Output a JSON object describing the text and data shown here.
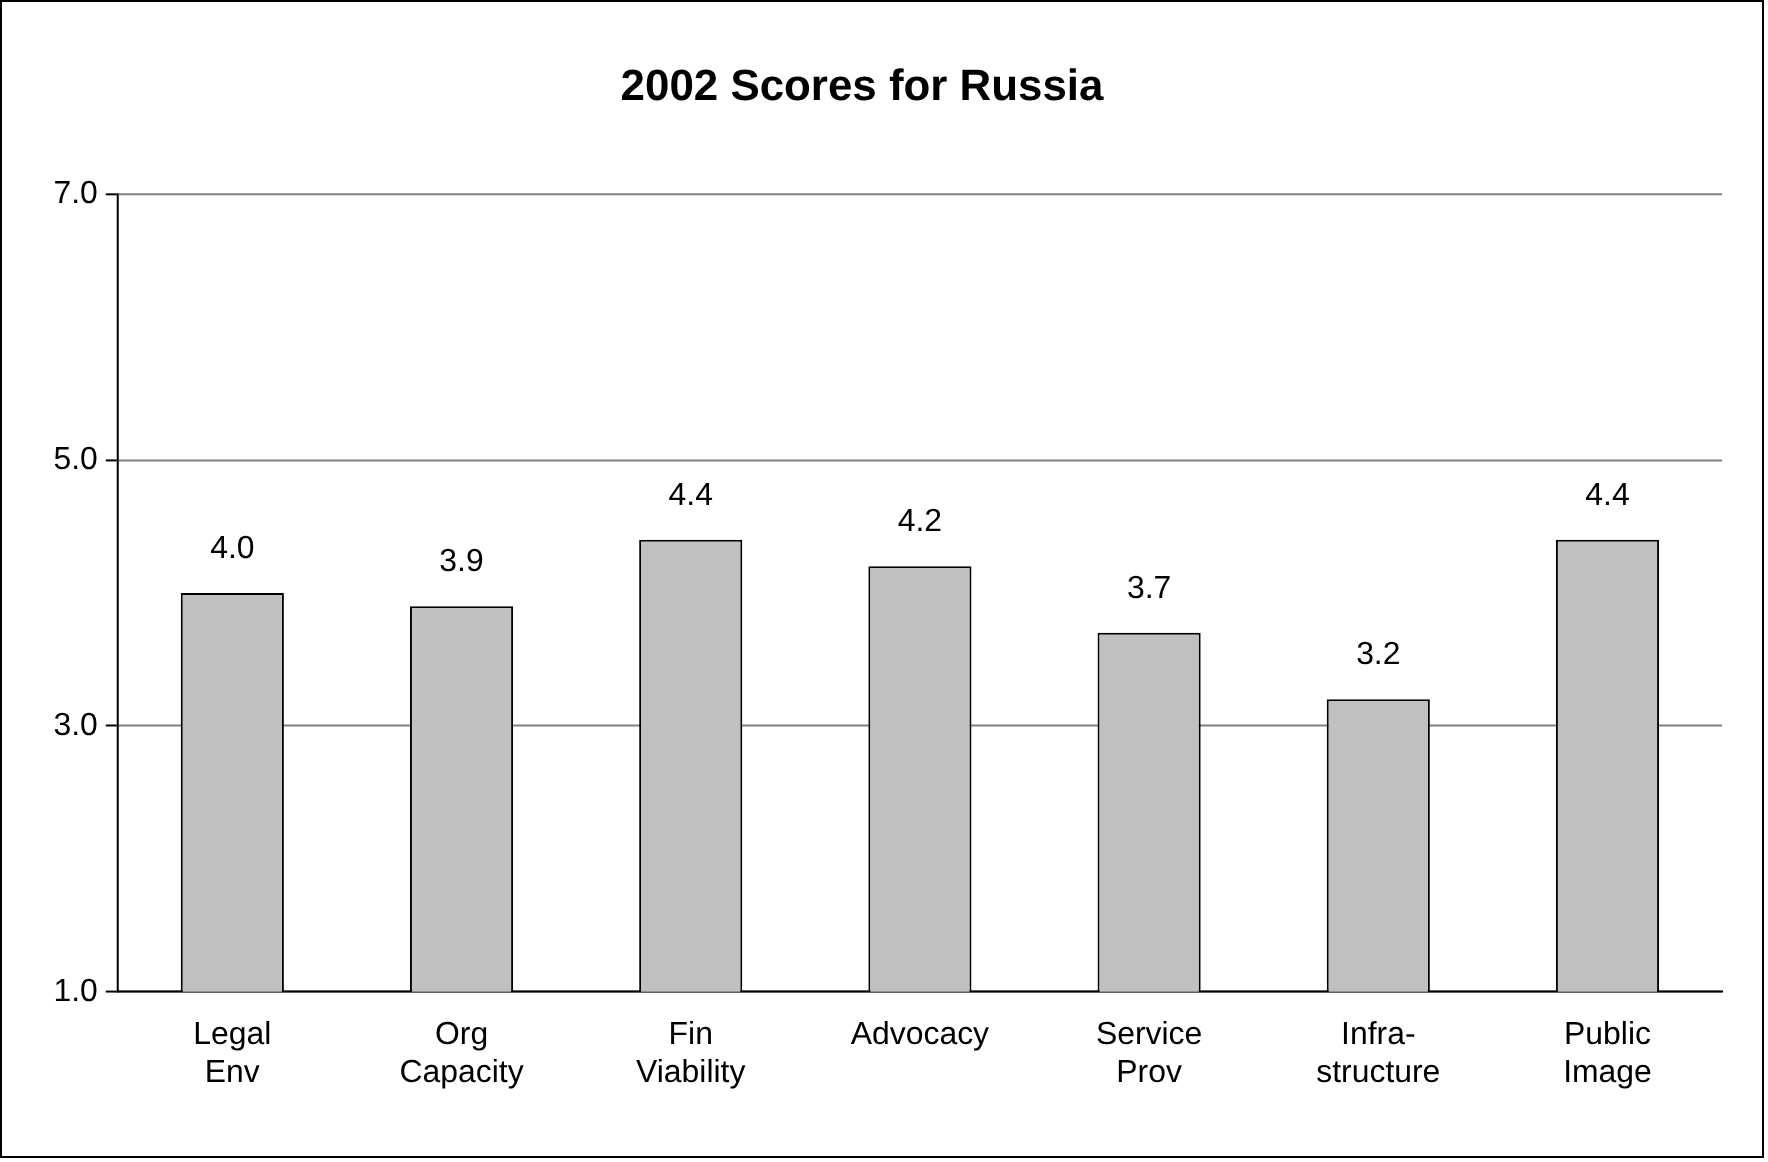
{
  "chart_data": {
    "type": "bar",
    "title": "2002 Scores for Russia",
    "categories": [
      "Legal Env",
      "Org Capacity",
      "Fin Viability",
      "Advocacy",
      "Service Prov",
      "Infra-structure",
      "Public Image"
    ],
    "values": [
      4.0,
      3.9,
      4.4,
      4.2,
      3.7,
      3.2,
      4.4
    ],
    "value_labels": [
      "4.0",
      "3.9",
      "4.4",
      "4.2",
      "3.7",
      "3.2",
      "4.4"
    ],
    "color": "#c0c0c0",
    "ylim": [
      1,
      7
    ],
    "yticks": [
      {
        "value": 1,
        "label": "1.0"
      },
      {
        "value": 3,
        "label": "3.0"
      },
      {
        "value": 5,
        "label": "5.0"
      },
      {
        "value": 7,
        "label": "7.0"
      }
    ],
    "grid": "y",
    "legend": false
  }
}
